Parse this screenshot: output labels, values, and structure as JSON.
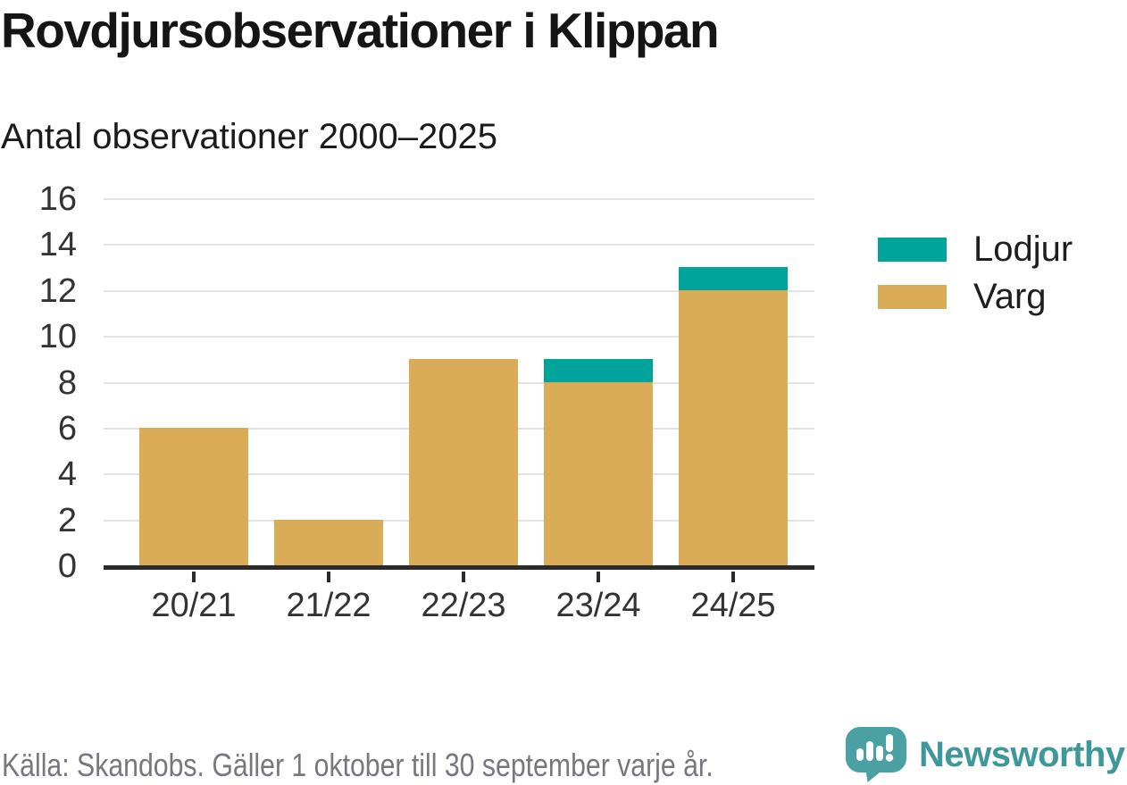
{
  "header": {
    "title": "Rovdjursobservationer i Klippan",
    "subtitle": "Antal observationer 2000–2025"
  },
  "chart_data": {
    "type": "bar",
    "stacked": true,
    "title": "Rovdjursobservationer i Klippan",
    "subtitle": "Antal observationer 2000–2025",
    "categories": [
      "20/21",
      "21/22",
      "22/23",
      "23/24",
      "24/25"
    ],
    "series": [
      {
        "name": "Varg",
        "color": "#daac57",
        "values": [
          6,
          2,
          9,
          8,
          12
        ]
      },
      {
        "name": "Lodjur",
        "color": "#00a49a",
        "values": [
          0,
          0,
          0,
          1,
          1
        ]
      }
    ],
    "totals": [
      6,
      2,
      9,
      9,
      13
    ],
    "xlabel": "",
    "ylabel": "",
    "ylim": [
      0,
      16
    ],
    "yticks": [
      0,
      2,
      4,
      6,
      8,
      10,
      12,
      14,
      16
    ],
    "grid": true,
    "legend_position": "right",
    "legend": [
      {
        "label": "Lodjur",
        "color": "#00a49a"
      },
      {
        "label": "Varg",
        "color": "#daac57"
      }
    ]
  },
  "footer": {
    "source": "Källa: Skandobs. Gäller 1 oktober till 30 september varje år.",
    "brand": "Newsworthy"
  },
  "colors": {
    "lodjur_teal": "#00a49a",
    "varg_gold": "#daac57",
    "brand_teal": "#3e989a",
    "brand_icon_teal": "#4aa0a2",
    "grid_gray": "#e4e4e4",
    "axis_dark": "#2b2b2b",
    "label_gray": "#333333",
    "source_gray": "#77777f"
  }
}
